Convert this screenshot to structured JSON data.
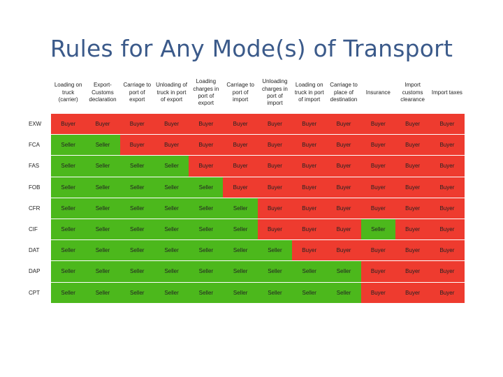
{
  "slide": {
    "title": "Rules for Any Mode(s) of Transport"
  },
  "colors": {
    "buyer": "#ee3b2f",
    "seller": "#4cb81c",
    "title": "#3b5a8a"
  },
  "columns": [
    "Loading on truck (carrier)",
    "Export-Customs declaration",
    "Carriage to port of export",
    "Unloading of truck in port of export",
    "Loading charges in port of export",
    "Carriage to port of import",
    "Unloading charges in port of import",
    "Loading on truck in port of import",
    "Carriage to place of destination",
    "Insurance",
    "Import customs clearance",
    "Import taxes"
  ],
  "rows": [
    {
      "term": "EXW",
      "cells": [
        "Buyer",
        "Buyer",
        "Buyer",
        "Buyer",
        "Buyer",
        "Buyer",
        "Buyer",
        "Buyer",
        "Buyer",
        "Buyer",
        "Buyer",
        "Buyer"
      ]
    },
    {
      "term": "FCA",
      "cells": [
        "Seller",
        "Seller",
        "Buyer",
        "Buyer",
        "Buyer",
        "Buyer",
        "Buyer",
        "Buyer",
        "Buyer",
        "Buyer",
        "Buyer",
        "Buyer"
      ]
    },
    {
      "term": "FAS",
      "cells": [
        "Seller",
        "Seller",
        "Seller",
        "Seller",
        "Buyer",
        "Buyer",
        "Buyer",
        "Buyer",
        "Buyer",
        "Buyer",
        "Buyer",
        "Buyer"
      ]
    },
    {
      "term": "FOB",
      "cells": [
        "Seller",
        "Seller",
        "Seller",
        "Seller",
        "Seller",
        "Buyer",
        "Buyer",
        "Buyer",
        "Buyer",
        "Buyer",
        "Buyer",
        "Buyer"
      ]
    },
    {
      "term": "CFR",
      "cells": [
        "Seller",
        "Seller",
        "Seller",
        "Seller",
        "Seller",
        "Seller",
        "Buyer",
        "Buyer",
        "Buyer",
        "Buyer",
        "Buyer",
        "Buyer"
      ]
    },
    {
      "term": "CIF",
      "cells": [
        "Seller",
        "Seller",
        "Seller",
        "Seller",
        "Seller",
        "Seller",
        "Buyer",
        "Buyer",
        "Buyer",
        "Seller",
        "Buyer",
        "Buyer"
      ]
    },
    {
      "term": "DAT",
      "cells": [
        "Seller",
        "Seller",
        "Seller",
        "Seller",
        "Seller",
        "Seller",
        "Seller",
        "Buyer",
        "Buyer",
        "Buyer",
        "Buyer",
        "Buyer"
      ]
    },
    {
      "term": "DAP",
      "cells": [
        "Seller",
        "Seller",
        "Seller",
        "Seller",
        "Seller",
        "Seller",
        "Seller",
        "Seller",
        "Seller",
        "Buyer",
        "Buyer",
        "Buyer"
      ]
    },
    {
      "term": "CPT",
      "cells": [
        "Seller",
        "Seller",
        "Seller",
        "Seller",
        "Seller",
        "Seller",
        "Seller",
        "Seller",
        "Seller",
        "Buyer",
        "Buyer",
        "Buyer"
      ]
    }
  ]
}
